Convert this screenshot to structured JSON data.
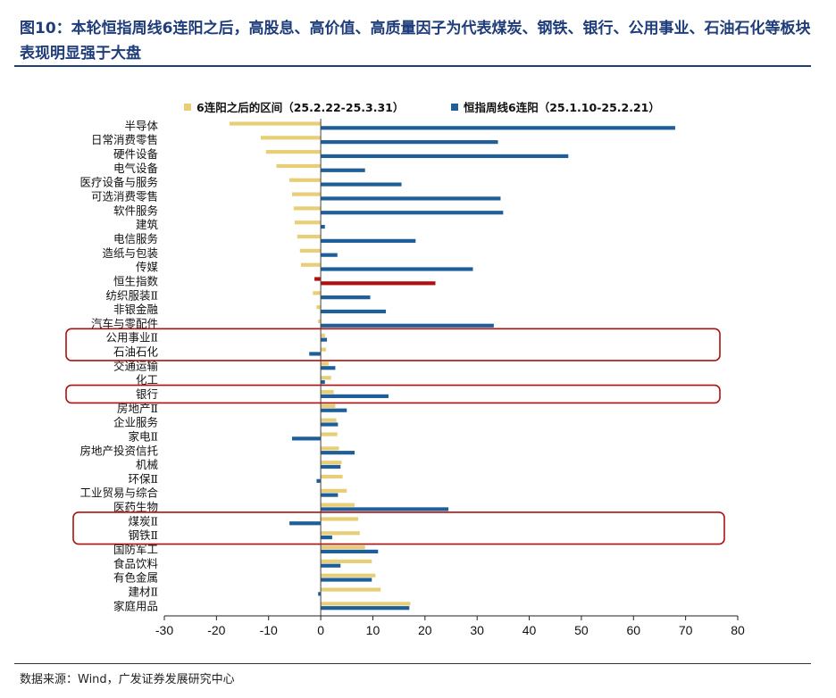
{
  "title": "图10：本轮恒指周线6连阳之后，高股息、高价值、高质量因子为代表煤炭、钢铁、银行、公用事业、石油石化等板块表现明显强于大盘",
  "source": "数据来源：Wind，广发证券发展研究中心",
  "colors": {
    "after": "#e8cf77",
    "streak": "#1f5f99",
    "index_highlight": "#b01010",
    "highlight_box": "#b01010",
    "title": "#1f3d7a"
  },
  "chart_data": {
    "type": "bar",
    "orientation": "horizontal",
    "categories": [
      "半导体",
      "日常消费零售",
      "硬件设备",
      "电气设备",
      "医疗设备与服务",
      "可选消费零售",
      "软件服务",
      "建筑",
      "电信服务",
      "造纸与包装",
      "传媒",
      "恒生指数",
      "纺织服装Ⅱ",
      "非银金融",
      "汽车与零配件",
      "公用事业Ⅱ",
      "石油石化",
      "交通运输",
      "化工",
      "银行",
      "房地产Ⅱ",
      "企业服务",
      "家电Ⅱ",
      "房地产投资信托",
      "机械",
      "环保Ⅱ",
      "工业贸易与综合",
      "医药生物",
      "煤炭Ⅱ",
      "钢铁Ⅱ",
      "国防军工",
      "食品饮料",
      "有色金属",
      "建材Ⅱ",
      "家庭用品"
    ],
    "series": [
      {
        "name": "6连阳之后的区间（25.2.22-25.3.31）",
        "values": [
          -17.5,
          -11.5,
          -10.5,
          -8.5,
          -6.0,
          -5.5,
          -5.2,
          -5.0,
          -4.5,
          -4.0,
          -3.8,
          -1.2,
          -1.5,
          -0.8,
          -0.5,
          0.8,
          1.0,
          1.5,
          2.0,
          2.5,
          2.8,
          3.0,
          3.2,
          3.5,
          4.0,
          4.2,
          5.0,
          6.5,
          7.2,
          7.5,
          8.5,
          9.8,
          10.5,
          11.5,
          17.2
        ]
      },
      {
        "name": "恒指周线6连阳（25.1.10-25.2.21）",
        "values": [
          68.0,
          34.0,
          47.5,
          8.5,
          15.5,
          34.5,
          35.0,
          0.8,
          18.2,
          3.2,
          29.2,
          22.0,
          9.5,
          12.5,
          33.2,
          1.2,
          -2.2,
          2.8,
          0.8,
          13.0,
          5.0,
          3.3,
          -5.5,
          6.5,
          3.8,
          -0.8,
          3.3,
          24.5,
          -6.0,
          2.2,
          11.0,
          3.8,
          9.8,
          -0.5,
          17.0
        ]
      }
    ],
    "highlight_category": "恒生指数",
    "highlight_groups": [
      [
        "公用事业Ⅱ",
        "石油石化"
      ],
      [
        "银行"
      ],
      [
        "煤炭Ⅱ",
        "钢铁Ⅱ"
      ]
    ],
    "xlim": [
      -30,
      80
    ],
    "xticks": [
      -30,
      -20,
      -10,
      0,
      10,
      20,
      30,
      40,
      50,
      60,
      70,
      80
    ],
    "legend_position": "top"
  }
}
